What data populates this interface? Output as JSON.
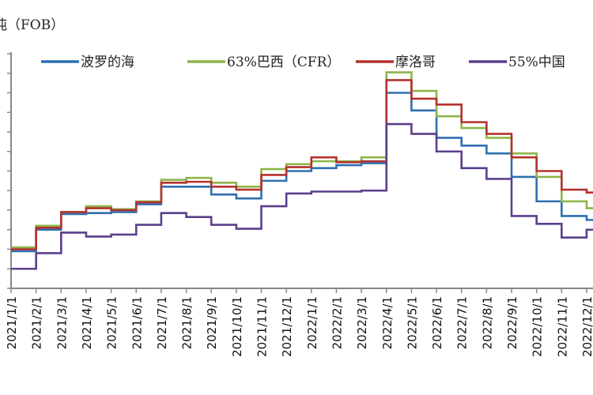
{
  "chart_data": {
    "type": "line",
    "title": "",
    "unit_label": "吨（FOB）",
    "xlabel": "",
    "ylabel": "",
    "categories": [
      "2021/1/1",
      "2021/2/1",
      "2021/3/1",
      "2021/4/1",
      "2021/5/1",
      "2021/6/1",
      "2021/7/1",
      "2021/8/1",
      "2021/9/1",
      "2021/10/1",
      "2021/11/1",
      "2021/12/1",
      "2022/1/1",
      "2022/2/1",
      "2022/3/1",
      "2022/4/1",
      "2022/5/1",
      "2022/6/1",
      "2022/7/1",
      "2022/8/1",
      "2022/9/1",
      "2022/10/1",
      "2022/11/1",
      "2022/12/1"
    ],
    "y_tick_labels_visible": false,
    "ylim": [
      0,
      12
    ],
    "grid": false,
    "legend_position": "top",
    "line_style": "step",
    "series": [
      {
        "name": "波罗的海",
        "color": "#2e6fb0",
        "values": [
          1.9,
          3.0,
          3.8,
          3.85,
          3.9,
          4.3,
          5.2,
          5.2,
          4.8,
          4.6,
          5.5,
          6.0,
          6.15,
          6.3,
          6.4,
          10.0,
          9.1,
          7.7,
          7.3,
          6.9,
          5.7,
          4.45,
          3.7,
          3.5
        ]
      },
      {
        "name": "63%巴西（CFR）",
        "color": "#8db54a",
        "values": [
          2.1,
          3.2,
          3.9,
          4.2,
          4.05,
          4.45,
          5.55,
          5.65,
          5.4,
          5.2,
          6.1,
          6.35,
          6.5,
          6.5,
          6.7,
          11.05,
          10.1,
          8.8,
          8.2,
          7.7,
          6.9,
          5.7,
          4.45,
          4.1
        ]
      },
      {
        "name": "摩洛哥",
        "color": "#b3322e",
        "values": [
          2.0,
          3.1,
          3.9,
          4.1,
          4.0,
          4.4,
          5.4,
          5.45,
          5.2,
          5.05,
          5.8,
          6.2,
          6.7,
          6.45,
          6.5,
          10.65,
          9.7,
          9.4,
          8.5,
          7.9,
          6.7,
          6.0,
          5.05,
          4.9
        ]
      },
      {
        "name": "55%中国",
        "color": "#5b3f8c",
        "values": [
          1.0,
          1.8,
          2.85,
          2.65,
          2.75,
          3.25,
          3.85,
          3.65,
          3.25,
          3.05,
          4.2,
          4.85,
          4.95,
          4.95,
          5.0,
          8.4,
          7.9,
          7.0,
          6.15,
          5.6,
          3.7,
          3.3,
          2.6,
          3.0
        ]
      }
    ]
  }
}
